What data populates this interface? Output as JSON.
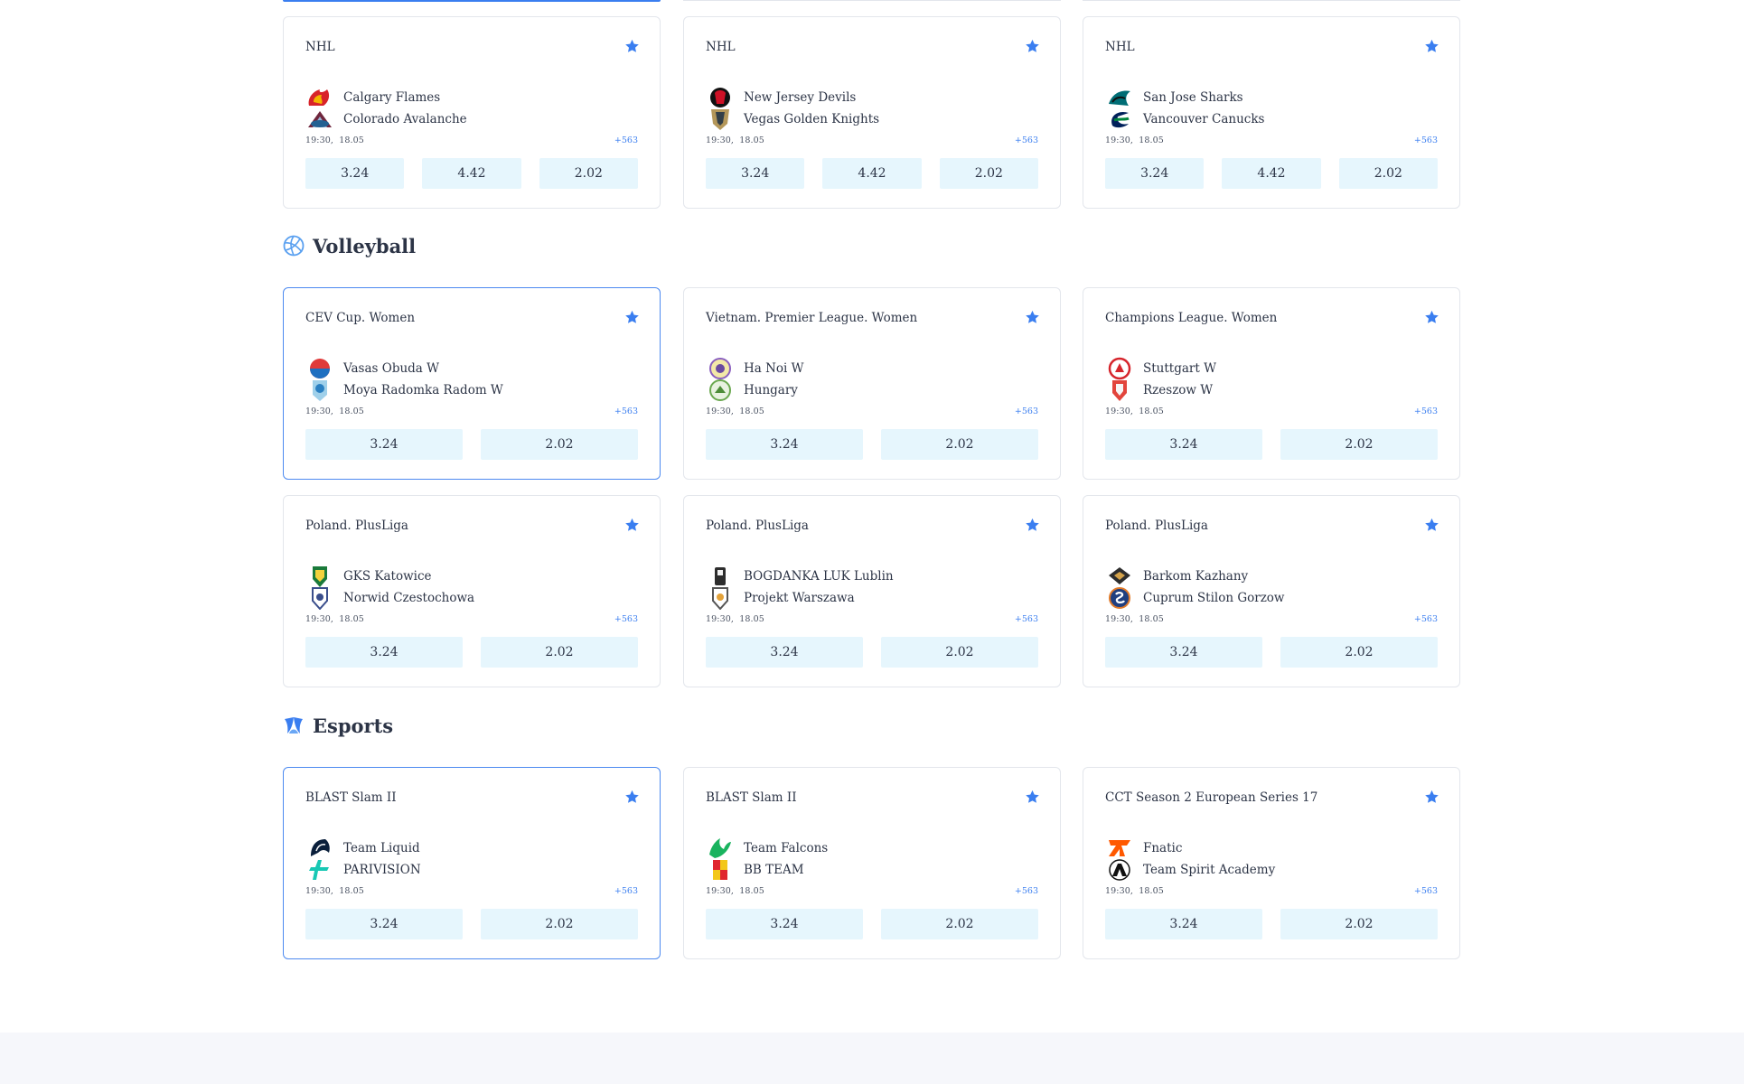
{
  "colors": {
    "accent": "#3a7ef0",
    "odds_bg": "#e6f6fd",
    "card_border": "#e3e6ec",
    "text": "#2c3446"
  },
  "sections": {
    "volleyball": {
      "title": "Volleyball",
      "icon": "volleyball-icon"
    },
    "esports": {
      "title": "Esports",
      "icon": "esports-icon"
    }
  },
  "hockey_cards": [
    {
      "league": "NHL",
      "team1": "Calgary Flames",
      "team2": "Colorado Avalanche",
      "time": "19:30,",
      "date": "18.05",
      "more": "+563",
      "odds": [
        "3.24",
        "4.42",
        "2.02"
      ]
    },
    {
      "league": "NHL",
      "team1": "New Jersey Devils",
      "team2": "Vegas Golden Knights",
      "time": "19:30,",
      "date": "18.05",
      "more": "+563",
      "odds": [
        "3.24",
        "4.42",
        "2.02"
      ]
    },
    {
      "league": "NHL",
      "team1": "San Jose Sharks",
      "team2": "Vancouver Canucks",
      "time": "19:30,",
      "date": "18.05",
      "more": "+563",
      "odds": [
        "3.24",
        "4.42",
        "2.02"
      ]
    }
  ],
  "volleyball_cards": [
    {
      "league": "CEV Cup. Women",
      "team1": "Vasas Obuda W",
      "team2": "Moya Radomka Radom W",
      "time": "19:30,",
      "date": "18.05",
      "more": "+563",
      "odds": [
        "3.24",
        "2.02"
      ]
    },
    {
      "league": "Vietnam. Premier League. Women",
      "team1": "Ha Noi W",
      "team2": "Hungary",
      "time": "19:30,",
      "date": "18.05",
      "more": "+563",
      "odds": [
        "3.24",
        "2.02"
      ]
    },
    {
      "league": "Champions League. Women",
      "team1": "Stuttgart W",
      "team2": "Rzeszow W",
      "time": "19:30,",
      "date": "18.05",
      "more": "+563",
      "odds": [
        "3.24",
        "2.02"
      ]
    },
    {
      "league": "Poland. PlusLiga",
      "team1": "GKS Katowice",
      "team2": "Norwid Czestochowa",
      "time": "19:30,",
      "date": "18.05",
      "more": "+563",
      "odds": [
        "3.24",
        "2.02"
      ]
    },
    {
      "league": "Poland. PlusLiga",
      "team1": "BOGDANKA LUK Lublin",
      "team2": "Projekt Warszawa",
      "time": "19:30,",
      "date": "18.05",
      "more": "+563",
      "odds": [
        "3.24",
        "2.02"
      ]
    },
    {
      "league": "Poland. PlusLiga",
      "team1": "Barkom Kazhany",
      "team2": "Cuprum Stilon Gorzow",
      "time": "19:30,",
      "date": "18.05",
      "more": "+563",
      "odds": [
        "3.24",
        "2.02"
      ]
    }
  ],
  "esports_cards": [
    {
      "league": "BLAST Slam II",
      "team1": "Team Liquid",
      "team2": "PARIVISION",
      "time": "19:30,",
      "date": "18.05",
      "more": "+563",
      "odds": [
        "3.24",
        "2.02"
      ]
    },
    {
      "league": "BLAST Slam II",
      "team1": "Team Falcons",
      "team2": "BB TEAM",
      "time": "19:30,",
      "date": "18.05",
      "more": "+563",
      "odds": [
        "3.24",
        "2.02"
      ]
    },
    {
      "league": "CCT Season 2 European Series 17",
      "team1": "Fnatic",
      "team2": "Team Spirit Academy",
      "time": "19:30,",
      "date": "18.05",
      "more": "+563",
      "odds": [
        "3.24",
        "2.02"
      ]
    }
  ]
}
